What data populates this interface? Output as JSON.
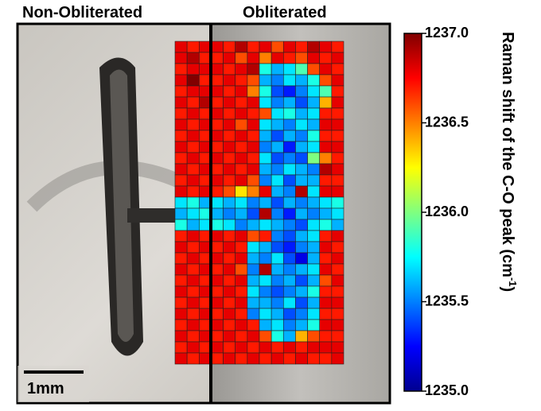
{
  "chart_data": {
    "type": "heatmap",
    "labels": {
      "left": "Non-Obliterated",
      "right": "Obliterated",
      "scale_bar": "1mm"
    },
    "colorbar_label": {
      "main": "Raman shift of the C-O peak (cm",
      "sup": "-1",
      "end": ")"
    },
    "colormap": "jet",
    "zlim": [
      1235.0,
      1237.0
    ],
    "zticks": [
      {
        "value": 1237,
        "label": "1237.0"
      },
      {
        "value": 1236.5,
        "label": "1236.5"
      },
      {
        "value": 1236,
        "label": "1236.0"
      },
      {
        "value": 1235.5,
        "label": "1235.5"
      },
      {
        "value": 1235,
        "label": "1235.0"
      }
    ],
    "values": [
      [
        1236.8,
        1236.7,
        1236.8,
        1236.8,
        1236.7,
        1236.9,
        1236.7,
        1236.8,
        1236.6,
        1236.8,
        1236.7,
        1236.9,
        1236.8,
        1236.7
      ],
      [
        1236.8,
        1236.9,
        1236.7,
        1236.7,
        1236.8,
        1236.6,
        1236.8,
        1236.5,
        1236.8,
        1236.7,
        1236.6,
        1236.8,
        1236.7,
        1236.8
      ],
      [
        1236.7,
        1236.8,
        1236.8,
        1236.8,
        1236.7,
        1236.8,
        1236.9,
        1235.8,
        1235.6,
        1235.7,
        1235.9,
        1236.6,
        1236.8,
        1236.7
      ],
      [
        1236.8,
        1237.0,
        1236.7,
        1236.7,
        1236.8,
        1236.7,
        1236.6,
        1235.6,
        1235.5,
        1235.7,
        1235.6,
        1235.8,
        1236.6,
        1236.8
      ],
      [
        1236.7,
        1236.8,
        1236.8,
        1236.8,
        1236.7,
        1236.8,
        1236.5,
        1235.8,
        1235.4,
        1235.3,
        1235.5,
        1235.7,
        1235.9,
        1236.7
      ],
      [
        1236.8,
        1236.7,
        1236.9,
        1236.7,
        1236.8,
        1236.7,
        1236.8,
        1235.7,
        1235.5,
        1235.6,
        1235.4,
        1235.6,
        1236.4,
        1236.8
      ],
      [
        1236.7,
        1236.8,
        1236.7,
        1236.8,
        1236.7,
        1236.8,
        1236.7,
        1236.6,
        1235.7,
        1235.8,
        1235.6,
        1235.7,
        1236.7,
        1236.7
      ],
      [
        1236.8,
        1236.7,
        1236.8,
        1236.7,
        1236.8,
        1236.6,
        1236.8,
        1235.7,
        1235.6,
        1235.5,
        1235.7,
        1235.6,
        1236.8,
        1236.8
      ],
      [
        1236.7,
        1236.8,
        1236.7,
        1236.8,
        1236.7,
        1236.8,
        1236.7,
        1235.6,
        1235.4,
        1235.6,
        1235.5,
        1235.8,
        1236.7,
        1236.7
      ],
      [
        1236.8,
        1236.7,
        1236.8,
        1236.7,
        1236.8,
        1236.7,
        1236.8,
        1235.5,
        1235.6,
        1235.3,
        1235.6,
        1235.7,
        1236.8,
        1236.8
      ],
      [
        1236.7,
        1236.8,
        1236.7,
        1236.8,
        1236.7,
        1236.8,
        1236.7,
        1235.7,
        1235.4,
        1235.5,
        1235.4,
        1236.0,
        1236.5,
        1236.7
      ],
      [
        1236.8,
        1236.7,
        1236.8,
        1236.7,
        1236.8,
        1236.7,
        1236.8,
        1235.6,
        1235.5,
        1235.7,
        1235.6,
        1235.5,
        1236.9,
        1236.8
      ],
      [
        1236.7,
        1236.8,
        1236.7,
        1236.8,
        1236.7,
        1236.8,
        1236.6,
        1235.5,
        1235.7,
        1235.4,
        1235.6,
        1235.6,
        1236.7,
        1236.7
      ],
      [
        1236.8,
        1236.7,
        1236.8,
        1236.7,
        1236.6,
        1236.3,
        1236.5,
        1236.8,
        1235.6,
        1235.5,
        1236.9,
        1235.7,
        1236.8,
        1236.8
      ],
      [
        1235.7,
        1235.8,
        1235.6,
        1235.7,
        1235.6,
        1235.7,
        1235.5,
        1235.6,
        1235.4,
        1235.6,
        1235.5,
        1235.6,
        1235.7,
        1235.8
      ],
      [
        1235.6,
        1235.7,
        1235.8,
        1235.6,
        1235.5,
        1235.6,
        1235.4,
        1236.9,
        1235.5,
        1235.3,
        1235.6,
        1235.5,
        1235.6,
        1235.7
      ],
      [
        1235.8,
        1235.6,
        1235.7,
        1235.8,
        1235.7,
        1235.5,
        1235.6,
        1235.7,
        1235.6,
        1235.5,
        1235.4,
        1235.7,
        1235.8,
        1235.6
      ],
      [
        1236.7,
        1236.8,
        1236.7,
        1236.8,
        1236.7,
        1236.8,
        1236.6,
        1236.7,
        1235.5,
        1235.4,
        1235.6,
        1235.7,
        1236.7,
        1236.8
      ],
      [
        1236.8,
        1236.7,
        1236.8,
        1236.7,
        1236.8,
        1236.7,
        1235.7,
        1235.6,
        1235.4,
        1235.3,
        1235.5,
        1235.6,
        1236.8,
        1236.7
      ],
      [
        1236.7,
        1236.8,
        1236.7,
        1236.8,
        1236.7,
        1236.8,
        1235.6,
        1235.5,
        1235.7,
        1235.4,
        1235.2,
        1235.6,
        1236.7,
        1236.8
      ],
      [
        1236.8,
        1236.7,
        1236.8,
        1236.7,
        1236.8,
        1236.6,
        1235.5,
        1236.9,
        1235.6,
        1235.5,
        1235.6,
        1235.7,
        1236.8,
        1236.7
      ],
      [
        1236.7,
        1236.8,
        1236.7,
        1236.8,
        1236.7,
        1236.8,
        1235.6,
        1235.7,
        1235.5,
        1235.6,
        1235.4,
        1235.6,
        1236.6,
        1236.8
      ],
      [
        1236.8,
        1236.7,
        1236.8,
        1236.7,
        1236.8,
        1236.7,
        1235.7,
        1235.5,
        1235.4,
        1235.5,
        1235.6,
        1235.8,
        1236.7,
        1236.7
      ],
      [
        1236.7,
        1236.8,
        1236.7,
        1236.8,
        1236.7,
        1236.8,
        1235.6,
        1235.6,
        1235.5,
        1235.7,
        1235.4,
        1235.6,
        1236.8,
        1236.8
      ],
      [
        1236.8,
        1236.7,
        1236.8,
        1236.7,
        1236.8,
        1236.7,
        1235.5,
        1235.7,
        1235.6,
        1235.4,
        1235.5,
        1235.7,
        1236.7,
        1236.7
      ],
      [
        1236.7,
        1236.8,
        1236.7,
        1236.8,
        1236.7,
        1236.8,
        1236.7,
        1235.6,
        1235.7,
        1235.5,
        1235.6,
        1235.8,
        1236.8,
        1236.8
      ],
      [
        1236.8,
        1236.7,
        1236.8,
        1236.7,
        1236.8,
        1236.7,
        1236.8,
        1236.6,
        1235.8,
        1235.6,
        1236.4,
        1236.6,
        1236.7,
        1236.7
      ],
      [
        1236.7,
        1236.8,
        1236.7,
        1236.8,
        1236.7,
        1236.8,
        1236.7,
        1236.8,
        1236.7,
        1236.8,
        1236.7,
        1236.8,
        1236.8,
        1236.8
      ],
      [
        1236.8,
        1236.7,
        1236.8,
        1236.7,
        1236.8,
        1236.7,
        1236.8,
        1236.7,
        1236.8,
        1236.7,
        1236.8,
        1236.7,
        1236.7,
        1236.8
      ]
    ]
  }
}
